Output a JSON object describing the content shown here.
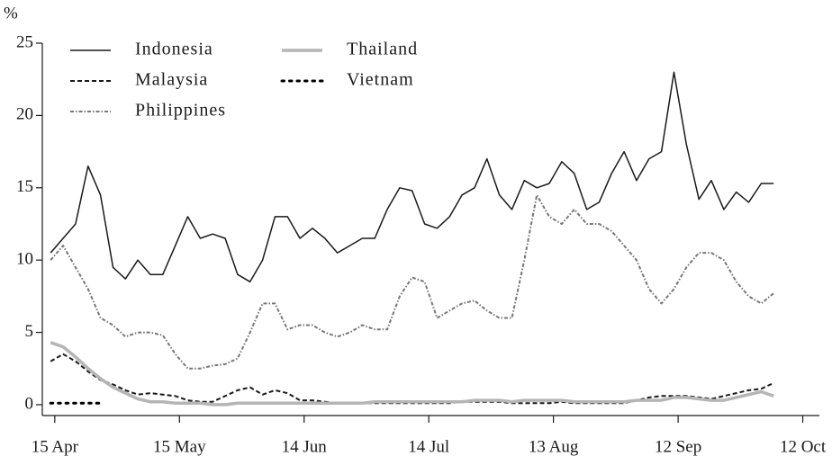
{
  "chart_data": {
    "type": "line",
    "y_label": "%",
    "x": [
      "14 Apr",
      "17 Apr",
      "20 Apr",
      "23 Apr",
      "26 Apr",
      "29 Apr",
      "2 May",
      "5 May",
      "8 May",
      "11 May",
      "14 May",
      "17 May",
      "20 May",
      "23 May",
      "26 May",
      "29 May",
      "1 Jun",
      "4 Jun",
      "7 Jun",
      "10 Jun",
      "13 Jun",
      "16 Jun",
      "19 Jun",
      "22 Jun",
      "25 Jun",
      "28 Jun",
      "1 Jul",
      "4 Jul",
      "7 Jul",
      "10 Jul",
      "13 Jul",
      "16 Jul",
      "19 Jul",
      "22 Jul",
      "25 Jul",
      "28 Jul",
      "31 Jul",
      "3 Aug",
      "6 Aug",
      "9 Aug",
      "12 Aug",
      "15 Aug",
      "18 Aug",
      "21 Aug",
      "24 Aug",
      "27 Aug",
      "30 Aug",
      "2 Sep",
      "5 Sep",
      "8 Sep",
      "11 Sep",
      "14 Sep",
      "17 Sep",
      "20 Sep",
      "23 Sep",
      "26 Sep",
      "29 Sep",
      "2 Oct",
      "5 Oct"
    ],
    "series": [
      {
        "name": "Indonesia",
        "color": "#1a1a1a",
        "style": "solid",
        "width": 1.5,
        "values": [
          10.5,
          11.5,
          12.5,
          16.5,
          14.5,
          9.5,
          8.7,
          10,
          9,
          9,
          11,
          13,
          11.5,
          11.8,
          11.5,
          9,
          8.5,
          10,
          13,
          13,
          11.5,
          12.2,
          11.5,
          10.5,
          11,
          11.5,
          11.5,
          13.5,
          15,
          14.8,
          12.5,
          12.2,
          13,
          14.5,
          15,
          17,
          14.5,
          13.5,
          15.5,
          15,
          15.3,
          16.8,
          16,
          13.5,
          14,
          16,
          17.5,
          15.5,
          17,
          17.5,
          23,
          18,
          14.2,
          15.5,
          13.5,
          14.7,
          14,
          15.3,
          15.3
        ]
      },
      {
        "name": "Malaysia",
        "color": "#1a1a1a",
        "style": "dashed",
        "width": 2,
        "values": [
          3,
          3.5,
          3,
          2.3,
          1.7,
          1.4,
          1,
          0.7,
          0.8,
          0.7,
          0.6,
          0.3,
          0.2,
          0.2,
          0.6,
          1,
          1.2,
          0.7,
          1,
          0.8,
          0.3,
          0.3,
          0.2,
          0.1,
          0.1,
          0.1,
          0.1,
          0.1,
          0.1,
          0.1,
          0.1,
          0.1,
          0.1,
          0.2,
          0.2,
          0.2,
          0.2,
          0.1,
          0.1,
          0.1,
          0.1,
          0.2,
          0.1,
          0.1,
          0.1,
          0.1,
          0.1,
          0.3,
          0.5,
          0.6,
          0.6,
          0.6,
          0.5,
          0.4,
          0.6,
          0.8,
          1,
          1.1,
          1.5
        ]
      },
      {
        "name": "Philippines",
        "color": "#777777",
        "style": "dashdot",
        "width": 2,
        "values": [
          10,
          11,
          9.5,
          8,
          6,
          5.5,
          4.7,
          5,
          5,
          4.8,
          3.5,
          2.5,
          2.5,
          2.7,
          2.8,
          3.2,
          5,
          7,
          7,
          5.2,
          5.5,
          5.5,
          5,
          4.7,
          5,
          5.5,
          5.2,
          5.2,
          7.5,
          8.8,
          8.5,
          6,
          6.5,
          7,
          7.2,
          6.5,
          6,
          6,
          10,
          14.5,
          13,
          12.5,
          13.5,
          12.5,
          12.5,
          12,
          11,
          10,
          8,
          7,
          8,
          9.5,
          10.5,
          10.5,
          10,
          8.5,
          7.5,
          7,
          7.7
        ]
      },
      {
        "name": "Thailand",
        "color": "#b5b5b5",
        "style": "solid",
        "width": 3.5,
        "values": [
          4.3,
          4,
          3.3,
          2.5,
          1.8,
          1.2,
          0.8,
          0.4,
          0.2,
          0.2,
          0.1,
          0.1,
          0.1,
          0,
          0,
          0.1,
          0.1,
          0.1,
          0.1,
          0.1,
          0.1,
          0.1,
          0.1,
          0.1,
          0.1,
          0.1,
          0.2,
          0.2,
          0.2,
          0.2,
          0.2,
          0.2,
          0.2,
          0.2,
          0.3,
          0.3,
          0.3,
          0.2,
          0.3,
          0.3,
          0.3,
          0.3,
          0.2,
          0.2,
          0.2,
          0.2,
          0.2,
          0.3,
          0.3,
          0.3,
          0.5,
          0.5,
          0.4,
          0.3,
          0.3,
          0.5,
          0.7,
          0.9,
          0.6
        ]
      },
      {
        "name": "Vietnam",
        "color": "#000000",
        "style": "dotted",
        "width": 3,
        "values": [
          0.1,
          0.1,
          0.1,
          0.1,
          0.1,
          null,
          null,
          null,
          null,
          null,
          null,
          null,
          null,
          null,
          null,
          null,
          null,
          null,
          null,
          null,
          null,
          null,
          null,
          null,
          null,
          null,
          null,
          null,
          null,
          null,
          null,
          null,
          null,
          null,
          null,
          null,
          null,
          null,
          null,
          null,
          null,
          null,
          null,
          null,
          null,
          null,
          null,
          null,
          null,
          null,
          null,
          null,
          null,
          null,
          null,
          null,
          null,
          null,
          null
        ]
      }
    ],
    "xlim": [
      "12 Apr",
      "16 Oct"
    ],
    "xticks": [
      "15 Apr",
      "15 May",
      "14 Jun",
      "14 Jul",
      "13 Aug",
      "12 Sep",
      "12 Oct"
    ],
    "ylim": [
      -0.75,
      25
    ],
    "yticks": [
      0,
      5,
      10,
      15,
      20,
      25
    ],
    "legend": "top-left"
  }
}
